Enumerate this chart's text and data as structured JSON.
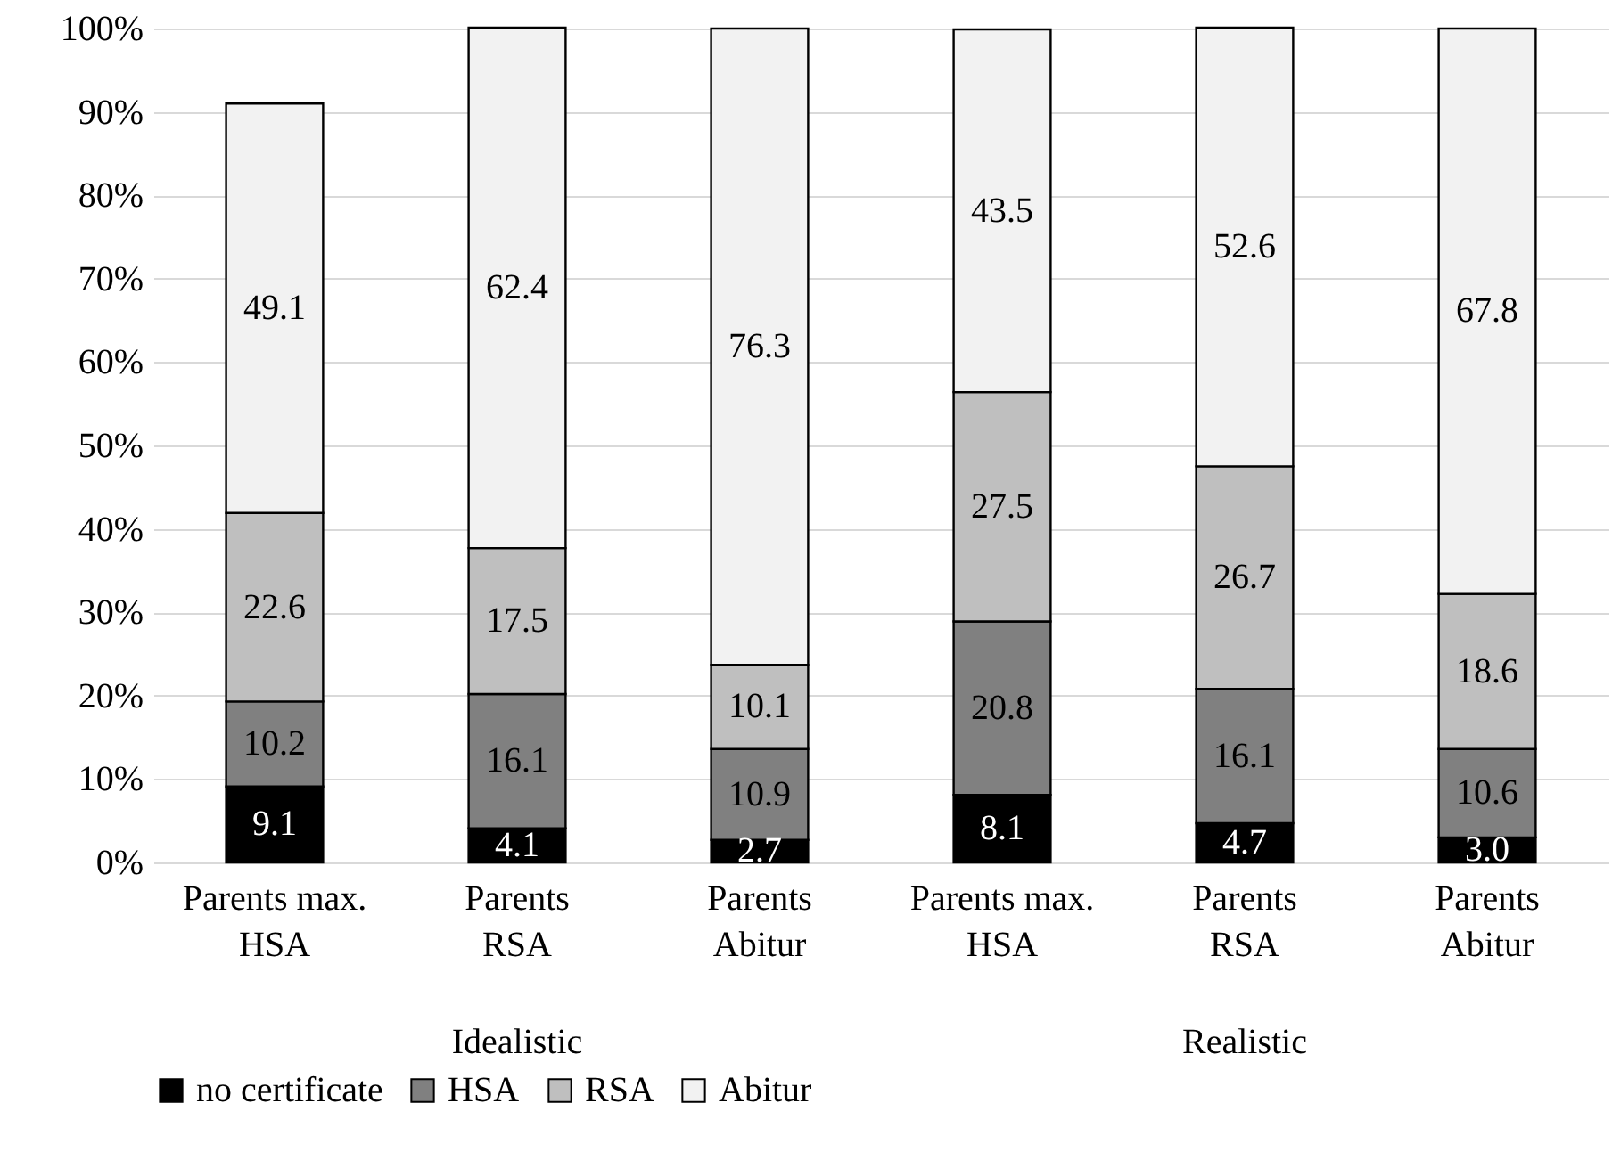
{
  "chart_data": {
    "type": "bar",
    "stacked": true,
    "categories": [
      "Parents max. HSA",
      "Parents RSA",
      "Parents Abitur",
      "Parents max. HSA",
      "Parents RSA",
      "Parents Abitur"
    ],
    "series": [
      {
        "name": "no certificate",
        "color": "#000000",
        "values": [
          9.1,
          4.1,
          2.7,
          8.1,
          4.7,
          3.0
        ],
        "value_labels": [
          "9.1",
          "4.1",
          "2.7",
          "8.1",
          "4.7",
          "3.0"
        ]
      },
      {
        "name": "HSA",
        "color": "#808080",
        "values": [
          10.2,
          16.1,
          10.9,
          20.8,
          16.1,
          10.6
        ],
        "value_labels": [
          "10.2",
          "16.1",
          "10.9",
          "20.8",
          "16.1",
          "10.6"
        ]
      },
      {
        "name": "RSA",
        "color": "#bfbfbf",
        "values": [
          22.6,
          17.5,
          10.1,
          27.5,
          26.7,
          18.6
        ],
        "value_labels": [
          "22.6",
          "17.5",
          "10.1",
          "27.5",
          "26.7",
          "18.6"
        ]
      },
      {
        "name": "Abitur",
        "color": "#f2f2f2",
        "values": [
          49.1,
          62.4,
          76.3,
          43.5,
          52.6,
          67.8
        ],
        "value_labels": [
          "49.1",
          "62.4",
          "76.3",
          "43.5",
          "52.6",
          "67.8"
        ]
      }
    ],
    "ylim": [
      0,
      100
    ],
    "yticks": [
      {
        "value": 0,
        "label": "0%"
      },
      {
        "value": 10,
        "label": "10%"
      },
      {
        "value": 20,
        "label": "20%"
      },
      {
        "value": 30,
        "label": "30%"
      },
      {
        "value": 40,
        "label": "40%"
      },
      {
        "value": 50,
        "label": "50%"
      },
      {
        "value": 60,
        "label": "60%"
      },
      {
        "value": 70,
        "label": "70%"
      },
      {
        "value": 80,
        "label": "80%"
      },
      {
        "value": 90,
        "label": "90%"
      },
      {
        "value": 100,
        "label": "100%"
      }
    ],
    "grid": "y",
    "legend": "bottom",
    "annotations": [
      "Idealistic",
      "Realistic"
    ]
  }
}
